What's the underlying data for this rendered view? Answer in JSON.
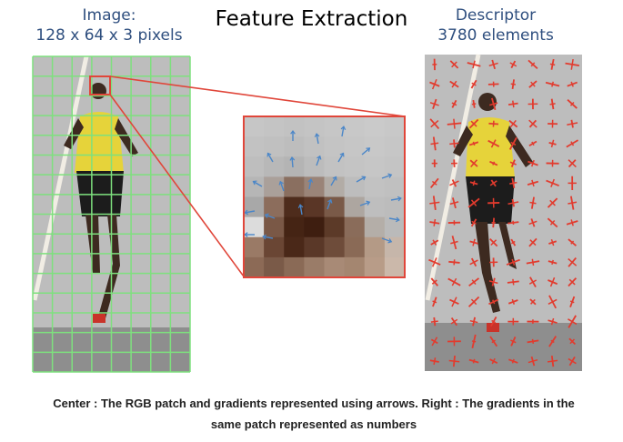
{
  "header": {
    "left_label_line1": "Image:",
    "left_label_line2": "128 x 64 x 3 pixels",
    "title": "Feature Extraction",
    "right_label_line1": "Descriptor",
    "right_label_line2": "3780 elements"
  },
  "caption": {
    "line1": "Center : The RGB patch and gradients represented using arrows. Right : The gradients in the",
    "line2": "same patch represented as numbers"
  },
  "colors": {
    "grid_lines": "#7ee07e",
    "zoom_box": "#e0463a",
    "gradient_arrows": "#4a86c8",
    "descriptor_arrows": "#e23b2e",
    "label_text": "#2f4f7f"
  },
  "left_image": {
    "grid_columns": 8,
    "grid_rows": 16
  },
  "patch": {
    "cells": 8
  }
}
